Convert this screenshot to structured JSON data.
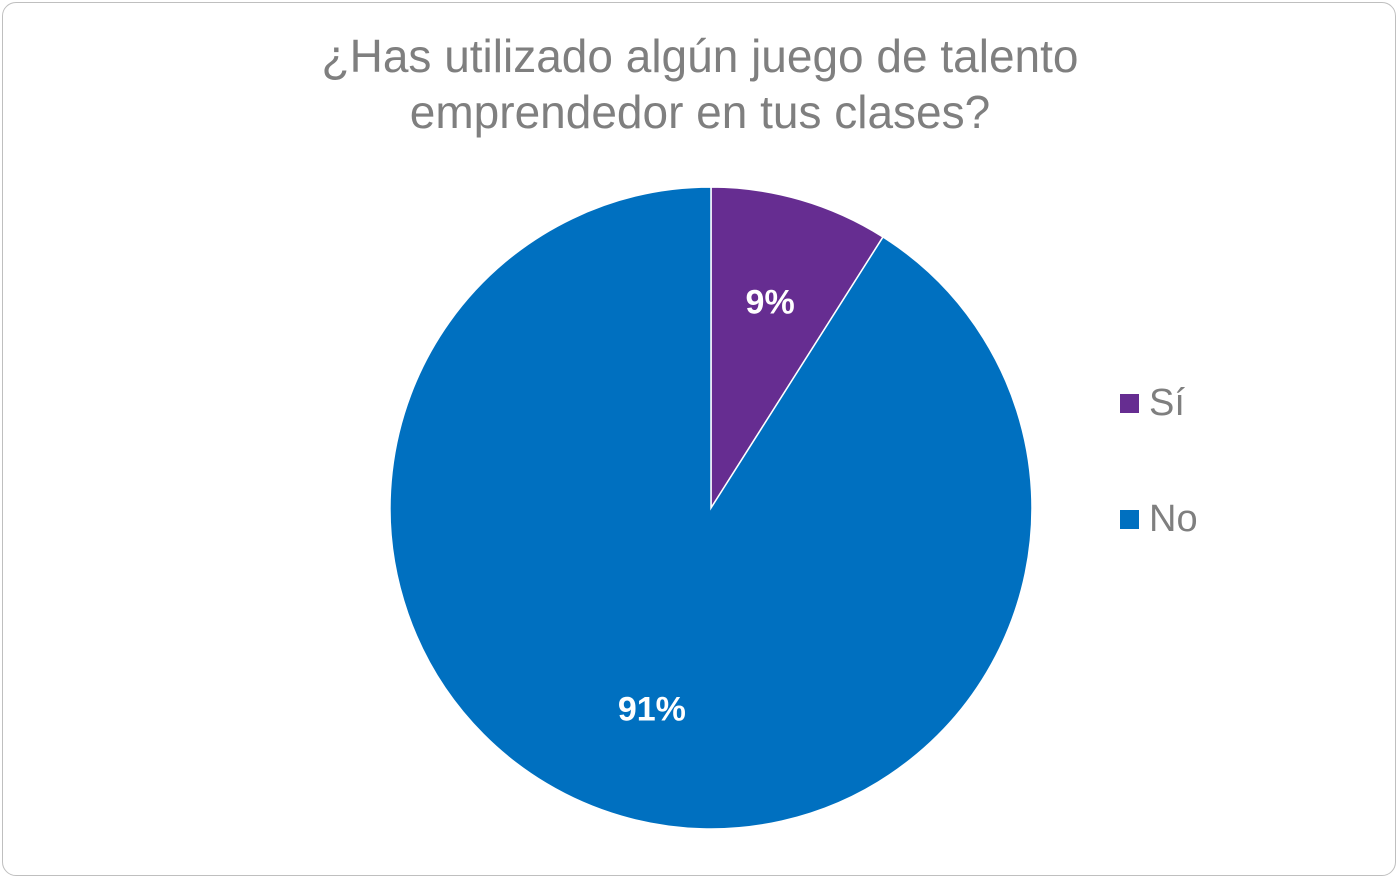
{
  "chart_data": {
    "type": "pie",
    "title": "¿Has utilizado algún juego de talento emprendedor en tus clases?",
    "categories": [
      "Sí",
      "No"
    ],
    "values": [
      9,
      91
    ],
    "labels": [
      "9%",
      "91%"
    ],
    "colors": [
      "#662d91",
      "#0070c0"
    ],
    "legend_position": "right",
    "start_angle": "top",
    "direction": "clockwise"
  }
}
